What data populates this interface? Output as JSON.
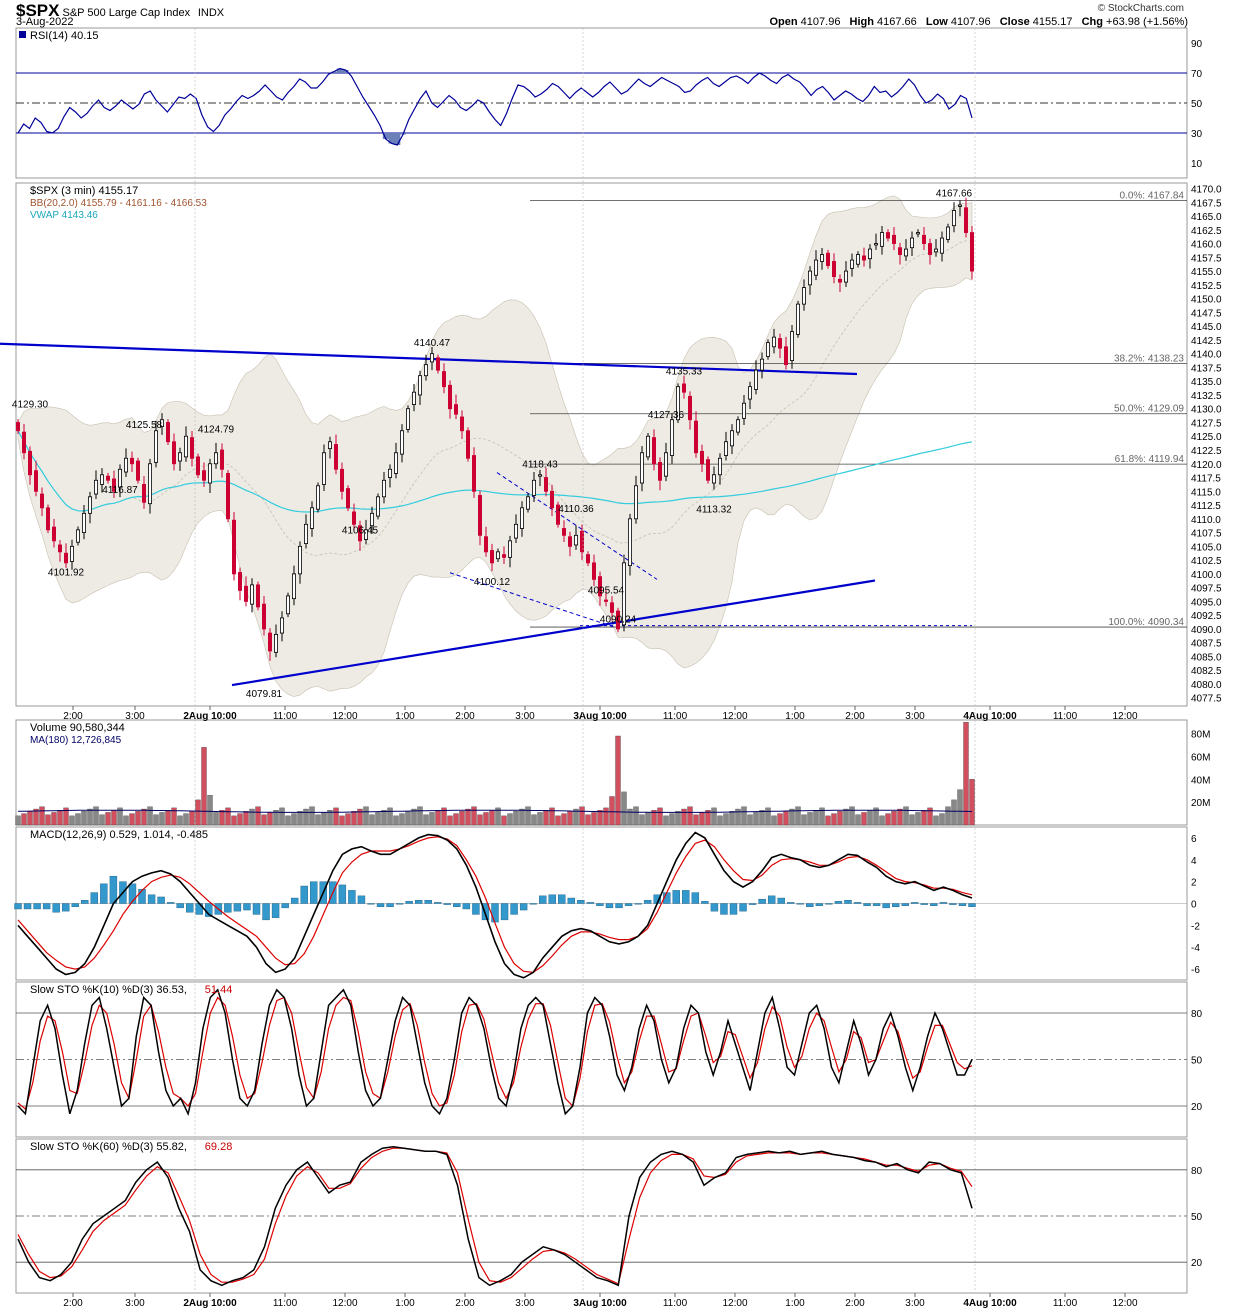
{
  "header": {
    "symbol": "$SPX",
    "description": "S&P 500 Large Cap Index",
    "exchange": "INDX",
    "date": "3-Aug-2022",
    "copyright": "© StockCharts.com",
    "open_label": "Open",
    "open": "4107.96",
    "high_label": "High",
    "high": "4167.66",
    "low_label": "Low",
    "low": "4107.96",
    "close_label": "Close",
    "close": "4155.17",
    "chg_label": "Chg",
    "chg": "+63.98 (+1.56%)"
  },
  "colors": {
    "up": "#000000",
    "down": "#cc0033",
    "vwap": "#33ccdd",
    "bands": "#e8e4dc",
    "trend": "#0000cc",
    "macd_hist": "#3399cc",
    "rsi_line": "#000099",
    "signal": "#dd0000"
  },
  "chart_data": [
    {
      "panel": "rsi",
      "type": "line",
      "legend": "RSI(14) 40.15",
      "ylim": [
        0,
        100
      ],
      "ticks": [
        "90",
        "70",
        "50",
        "30",
        "10"
      ],
      "levels": [
        70,
        50,
        30
      ],
      "values": [
        30,
        36,
        33,
        40,
        37,
        31,
        30,
        33,
        41,
        47,
        44,
        40,
        43,
        48,
        52,
        47,
        45,
        48,
        52,
        49,
        46,
        49,
        56,
        58,
        52,
        48,
        44,
        49,
        54,
        53,
        56,
        53,
        42,
        34,
        31,
        35,
        42,
        46,
        51,
        55,
        53,
        55,
        58,
        62,
        58,
        54,
        52,
        57,
        61,
        66,
        64,
        60,
        60,
        64,
        69,
        71,
        73,
        72,
        68,
        61,
        54,
        48,
        42,
        35,
        26,
        23,
        22,
        29,
        39,
        46,
        53,
        58,
        50,
        47,
        51,
        55,
        52,
        47,
        45,
        48,
        52,
        50,
        44,
        39,
        35,
        43,
        53,
        62,
        61,
        58,
        54,
        56,
        59,
        63,
        61,
        57,
        53,
        57,
        60,
        57,
        54,
        57,
        61,
        64,
        60,
        56,
        58,
        62,
        66,
        63,
        61,
        64,
        67,
        65,
        63,
        61,
        57,
        58,
        62,
        65,
        67,
        63,
        61,
        64,
        67,
        68,
        66,
        63,
        67,
        70,
        68,
        65,
        63,
        67,
        69,
        66,
        64,
        60,
        55,
        59,
        61,
        57,
        52,
        55,
        58,
        56,
        53,
        51,
        55,
        61,
        57,
        58,
        54,
        57,
        61,
        66,
        62,
        55,
        50,
        52,
        56,
        53,
        46,
        49,
        55,
        53,
        40
      ]
    },
    {
      "panel": "price",
      "type": "candlestick",
      "legend_price": "$SPX (3 min) 4155.17",
      "legend_bb": "BB(20,2.0) 4155.79 - 4161.16 - 4166.53",
      "legend_vwap": "VWAP 4143.46",
      "ylim": [
        4076,
        4171
      ],
      "ticks": [
        "4170.0",
        "4167.5",
        "4165.0",
        "4162.5",
        "4160.0",
        "4157.5",
        "4155.0",
        "4152.5",
        "4150.0",
        "4147.5",
        "4145.0",
        "4142.5",
        "4140.0",
        "4137.5",
        "4135.0",
        "4132.5",
        "4130.0",
        "4127.5",
        "4125.0",
        "4122.5",
        "4120.0",
        "4117.5",
        "4115.0",
        "4112.5",
        "4110.0",
        "4107.5",
        "4105.0",
        "4102.5",
        "4100.0",
        "4097.5",
        "4095.0",
        "4092.5",
        "4090.0",
        "4087.5",
        "4085.0",
        "4082.5",
        "4080.0",
        "4077.5"
      ],
      "x_ticks": [
        "2:00",
        "3:00",
        "2Aug 10:00",
        "11:00",
        "12:00",
        "1:00",
        "2:00",
        "3:00",
        "3Aug 10:00",
        "11:00",
        "12:00",
        "1:00",
        "2:00",
        "3:00",
        "4Aug 10:00",
        "11:00",
        "12:00"
      ],
      "closes": [
        4126,
        4122,
        4118,
        4115,
        4112,
        4108,
        4106,
        4104,
        4102,
        4105,
        4108,
        4111,
        4114,
        4117,
        4118,
        4117,
        4115,
        4119,
        4121,
        4120,
        4117,
        4113,
        4120,
        4126,
        4128,
        4124,
        4120,
        4122,
        4125,
        4121,
        4118,
        4117,
        4120,
        4122,
        4119,
        4110,
        4100,
        4097,
        4095,
        4098,
        4094,
        4090,
        4086,
        4089,
        4092,
        4096,
        4100,
        4105,
        4109,
        4112,
        4116,
        4122,
        4124,
        4119,
        4115,
        4112,
        4109,
        4106,
        4108,
        4111,
        4114,
        4117,
        4119,
        4122,
        4126,
        4130,
        4133,
        4136,
        4138,
        4140,
        4137,
        4134,
        4130,
        4129,
        4126,
        4121,
        4115,
        4107,
        4104,
        4102,
        4104,
        4103,
        4106,
        4109,
        4112,
        4114,
        4117,
        4118,
        4115,
        4112,
        4109,
        4107,
        4105,
        4107,
        4104,
        4102,
        4099,
        4096,
        4095,
        4093,
        4090,
        4102,
        4110,
        4116,
        4122,
        4125,
        4120,
        4117,
        4122,
        4128,
        4134,
        4133,
        4128,
        4122,
        4120,
        4117,
        4118,
        4121,
        4124,
        4126,
        4128,
        4131,
        4134,
        4137,
        4139,
        4142,
        4143,
        4141,
        4138,
        4144,
        4149,
        4152,
        4155,
        4157,
        4158,
        4156,
        4154,
        4153,
        4155,
        4157,
        4158,
        4157,
        4159,
        4160,
        4162,
        4161,
        4160,
        4158,
        4159,
        4161,
        4162,
        4160,
        4158,
        4159,
        4161,
        4163,
        4166,
        4167,
        4162,
        4155
      ],
      "price_labels": [
        {
          "i": 2,
          "v": 4129.3,
          "text": "4129.30"
        },
        {
          "i": 8,
          "v": 4101.92,
          "text": "4101.92"
        },
        {
          "i": 17,
          "v": 4116.87,
          "text": "4116.87"
        },
        {
          "i": 21,
          "v": 4125.58,
          "text": "4125.58"
        },
        {
          "i": 33,
          "v": 4124.79,
          "text": "4124.79"
        },
        {
          "i": 41,
          "v": 4079.81,
          "text": "4079.81"
        },
        {
          "i": 57,
          "v": 4106.45,
          "text": "4106.45"
        },
        {
          "i": 69,
          "v": 4140.47,
          "text": "4140.47"
        },
        {
          "i": 79,
          "v": 4100.12,
          "text": "4100.12"
        },
        {
          "i": 87,
          "v": 4118.43,
          "text": "4118.43"
        },
        {
          "i": 93,
          "v": 4110.36,
          "text": "4110.36"
        },
        {
          "i": 98,
          "v": 4095.54,
          "text": "4095.54"
        },
        {
          "i": 100,
          "v": 4090.24,
          "text": "4090.24"
        },
        {
          "i": 108,
          "v": 4127.36,
          "text": "4127.36"
        },
        {
          "i": 111,
          "v": 4135.33,
          "text": "4135.33"
        },
        {
          "i": 116,
          "v": 4113.32,
          "text": "4113.32"
        },
        {
          "i": 156,
          "v": 4167.66,
          "text": "4167.66"
        }
      ],
      "fib_levels": [
        {
          "v": 4167.84,
          "text": "0.0%: 4167.84"
        },
        {
          "v": 4138.23,
          "text": "38.2%: 4138.23"
        },
        {
          "v": 4129.09,
          "text": "50.0%: 4129.09"
        },
        {
          "v": 4119.94,
          "text": "61.8%: 4119.94"
        },
        {
          "v": 4090.34,
          "text": "100.0%: 4090.34"
        }
      ]
    },
    {
      "panel": "volume",
      "type": "bar",
      "legend_volume": "Volume 90,580,344",
      "legend_ma": "MA(180) 12,726,845",
      "ylim": [
        0,
        92
      ],
      "ticks": [
        "80M",
        "60M",
        "40M",
        "20M"
      ],
      "spikes": [
        {
          "i": 31,
          "v": 68
        },
        {
          "i": 100,
          "v": 78
        },
        {
          "i": 158,
          "v": 90
        }
      ]
    },
    {
      "panel": "macd",
      "type": "line",
      "legend": "MACD(12,26,9) 0.529, 1.014, -0.485",
      "ylim": [
        -7,
        7
      ],
      "ticks": [
        "6",
        "4",
        "2",
        "0",
        "-2",
        "-4",
        "-6"
      ],
      "macd": [
        -2,
        -3,
        -4,
        -5,
        -6,
        -6.5,
        -6.3,
        -5.5,
        -4,
        -2,
        0,
        1,
        2,
        2.5,
        2.8,
        3,
        2.7,
        2,
        1,
        0,
        -1,
        -1.5,
        -2,
        -2.5,
        -3,
        -4,
        -5.5,
        -6.3,
        -6,
        -5,
        -3,
        -1,
        1,
        3,
        4.5,
        5,
        5.2,
        4.8,
        4.5,
        4.5,
        5,
        5.5,
        6,
        6.3,
        6.2,
        5.8,
        5,
        3.5,
        1.5,
        -1,
        -3.5,
        -5.5,
        -6.5,
        -6.8,
        -6.3,
        -5,
        -4,
        -3,
        -2.5,
        -2.3,
        -2.5,
        -3,
        -3.5,
        -3.7,
        -3.5,
        -3,
        -2,
        0,
        2,
        4,
        5.5,
        6.5,
        6,
        4.5,
        3,
        2,
        1.5,
        2,
        3,
        4.2,
        4.5,
        4.2,
        4,
        3.5,
        3.3,
        3.5,
        4,
        4.5,
        4.4,
        3.8,
        3.3,
        2.5,
        2,
        1.8,
        2,
        1.6,
        1.2,
        1.5,
        1.2,
        0.8,
        0.5
      ],
      "signal": [
        -1.5,
        -2.5,
        -3.5,
        -4.5,
        -5.2,
        -5.8,
        -6,
        -5.8,
        -5,
        -3.8,
        -2.5,
        -1,
        0.2,
        1.2,
        2,
        2.4,
        2.6,
        2.4,
        1.8,
        1,
        0.2,
        -0.5,
        -1.2,
        -1.8,
        -2.4,
        -3,
        -4,
        -5,
        -5.6,
        -5.5,
        -4.6,
        -3,
        -1,
        1,
        2.8,
        3.8,
        4.5,
        4.8,
        4.8,
        4.8,
        5,
        5.3,
        5.7,
        6,
        6.1,
        5.9,
        5.3,
        4,
        2.5,
        0.5,
        -1.8,
        -4,
        -5.5,
        -6.2,
        -6.3,
        -5.7,
        -4.8,
        -3.8,
        -3,
        -2.6,
        -2.6,
        -2.8,
        -3.1,
        -3.3,
        -3.3,
        -3,
        -2.3,
        -0.8,
        1,
        2.8,
        4.3,
        5.5,
        5.8,
        5.2,
        4,
        3,
        2.2,
        2.1,
        2.6,
        3.5,
        4,
        4.1,
        4,
        3.8,
        3.5,
        3.5,
        3.8,
        4.2,
        4.3,
        4,
        3.5,
        2.9,
        2.3,
        2,
        1.9,
        1.7,
        1.4,
        1.4,
        1.3,
        1,
        0.8
      ],
      "hist": [
        -0.5,
        -0.5,
        -0.5,
        -0.5,
        -0.8,
        -0.7,
        -0.3,
        0.3,
        1,
        1.8,
        2.5,
        2,
        1.8,
        1.3,
        0.8,
        0.6,
        0.1,
        -0.4,
        -0.8,
        -1,
        -1.2,
        -1,
        -0.8,
        -0.7,
        -0.6,
        -1,
        -1.5,
        -1.3,
        -0.4,
        0.5,
        1.6,
        2,
        2,
        2,
        1.7,
        1.2,
        0.7,
        0,
        -0.3,
        -0.3,
        0,
        0.2,
        0.3,
        0.3,
        0.1,
        -0.1,
        -0.3,
        -0.5,
        -1,
        -1.5,
        -1.7,
        -1.5,
        -1,
        -0.6,
        0,
        0.7,
        0.8,
        0.8,
        0.5,
        0.3,
        0.1,
        -0.2,
        -0.4,
        -0.4,
        -0.2,
        0,
        0.3,
        0.8,
        1,
        1.2,
        1.2,
        1,
        0.2,
        -0.7,
        -1,
        -1,
        -0.7,
        -0.1,
        0.4,
        0.7,
        0.5,
        0.1,
        0,
        -0.3,
        -0.2,
        0,
        0.2,
        0.3,
        0.1,
        -0.2,
        -0.2,
        -0.4,
        -0.3,
        -0.2,
        0.1,
        -0.1,
        -0.2,
        0.1,
        -0.1,
        -0.2,
        -0.3
      ]
    },
    {
      "panel": "sto10",
      "type": "line",
      "legend_label": "Slow STO %K(10) %D(3) 36.53,",
      "legend_d": "51.44",
      "ylim": [
        0,
        100
      ],
      "ticks": [
        "80",
        "50",
        "20"
      ],
      "levels": [
        80,
        50,
        20
      ],
      "k": [
        20,
        15,
        45,
        75,
        85,
        70,
        40,
        15,
        30,
        60,
        85,
        90,
        70,
        45,
        20,
        25,
        65,
        90,
        85,
        55,
        30,
        20,
        25,
        15,
        35,
        70,
        90,
        95,
        80,
        50,
        25,
        20,
        30,
        60,
        85,
        95,
        90,
        70,
        40,
        20,
        25,
        55,
        85,
        90,
        95,
        85,
        55,
        30,
        20,
        25,
        50,
        75,
        90,
        85,
        60,
        35,
        20,
        15,
        25,
        50,
        80,
        90,
        85,
        70,
        45,
        25,
        20,
        40,
        70,
        85,
        90,
        85,
        60,
        35,
        15,
        20,
        45,
        80,
        90,
        85,
        65,
        40,
        30,
        45,
        70,
        85,
        75,
        50,
        35,
        45,
        70,
        85,
        80,
        55,
        40,
        55,
        75,
        60,
        45,
        30,
        55,
        80,
        90,
        70,
        45,
        40,
        60,
        80,
        85,
        70,
        45,
        35,
        55,
        75,
        60,
        40,
        50,
        70,
        80,
        65,
        45,
        30,
        45,
        65,
        80,
        70,
        55,
        40,
        40,
        50
      ],
      "d": [
        22,
        18,
        35,
        62,
        78,
        75,
        55,
        30,
        28,
        48,
        72,
        85,
        80,
        60,
        35,
        25,
        50,
        78,
        85,
        68,
        45,
        28,
        25,
        20,
        28,
        55,
        80,
        90,
        85,
        65,
        40,
        25,
        28,
        48,
        72,
        88,
        90,
        80,
        55,
        32,
        25,
        42,
        70,
        85,
        90,
        88,
        68,
        42,
        28,
        25,
        42,
        65,
        82,
        86,
        72,
        48,
        28,
        20,
        22,
        40,
        68,
        85,
        86,
        76,
        55,
        35,
        25,
        35,
        58,
        76,
        86,
        86,
        72,
        48,
        25,
        20,
        38,
        68,
        85,
        86,
        74,
        52,
        35,
        42,
        62,
        78,
        78,
        60,
        42,
        44,
        62,
        78,
        80,
        65,
        48,
        52,
        68,
        66,
        52,
        38,
        48,
        70,
        84,
        78,
        58,
        45,
        52,
        70,
        80,
        75,
        58,
        42,
        50,
        68,
        64,
        48,
        50,
        62,
        74,
        68,
        52,
        38,
        42,
        58,
        72,
        72,
        60,
        48,
        44,
        46
      ]
    },
    {
      "panel": "sto60",
      "type": "line",
      "legend_label": "Slow STO %K(60) %D(3) 55.82,",
      "legend_d": "69.28",
      "ylim": [
        0,
        100
      ],
      "ticks": [
        "80",
        "50",
        "20"
      ],
      "levels": [
        80,
        50,
        20
      ],
      "k": [
        35,
        20,
        10,
        8,
        12,
        20,
        35,
        45,
        50,
        55,
        60,
        72,
        80,
        85,
        75,
        55,
        40,
        15,
        8,
        5,
        8,
        10,
        15,
        30,
        55,
        70,
        80,
        85,
        75,
        65,
        70,
        72,
        85,
        90,
        94,
        95,
        94,
        93,
        92,
        92,
        90,
        70,
        35,
        10,
        5,
        8,
        12,
        20,
        25,
        30,
        28,
        25,
        20,
        15,
        10,
        8,
        5,
        50,
        75,
        85,
        90,
        92,
        90,
        85,
        70,
        75,
        78,
        88,
        90,
        91,
        92,
        91,
        92,
        90,
        91,
        92,
        90,
        89,
        88,
        86,
        85,
        82,
        84,
        80,
        78,
        85,
        84,
        80,
        78,
        55
      ],
      "d": [
        38,
        25,
        14,
        10,
        11,
        17,
        28,
        40,
        47,
        52,
        57,
        67,
        76,
        82,
        78,
        63,
        47,
        25,
        12,
        7,
        7,
        9,
        12,
        22,
        45,
        63,
        76,
        82,
        78,
        68,
        68,
        71,
        81,
        88,
        92,
        94,
        94,
        93,
        92,
        92,
        91,
        78,
        48,
        20,
        8,
        7,
        10,
        16,
        22,
        27,
        28,
        26,
        22,
        17,
        12,
        9,
        6,
        35,
        62,
        78,
        86,
        90,
        90,
        87,
        76,
        75,
        77,
        85,
        89,
        90,
        91,
        91,
        91,
        90,
        91,
        91,
        90,
        89,
        88,
        87,
        85,
        83,
        83,
        81,
        79,
        83,
        84,
        81,
        79,
        69
      ]
    }
  ]
}
